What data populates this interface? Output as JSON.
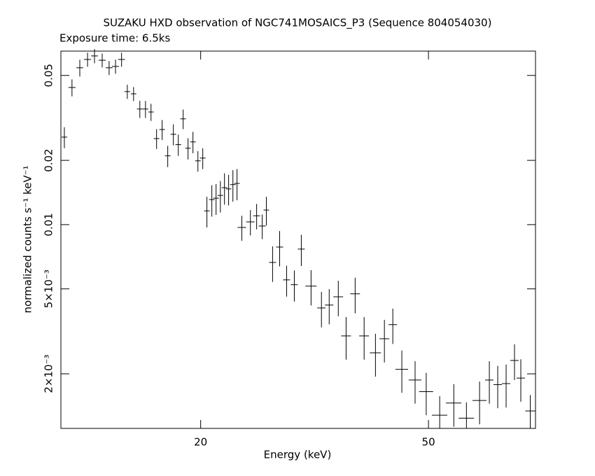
{
  "chart_data": {
    "type": "scatter",
    "title": "SUZAKU HXD observation of NGC741MOSAICS_P3 (Sequence 804054030)",
    "subtitle": "Exposure time: 6.5ks",
    "x_label": "Energy (keV)",
    "y_label": "normalized counts s⁻¹ keV⁻¹",
    "xlog": true,
    "ylog": true,
    "color": "#000000",
    "xlim": [
      11.4,
      76.9
    ],
    "ylim": [
      0.00111,
      0.065
    ],
    "xticks": [
      20,
      50
    ],
    "yticks": [
      0.05,
      0.02,
      0.01,
      {
        "value": 0.005,
        "label": "5×10⁻³"
      },
      {
        "value": 0.002,
        "label": "2×10⁻³"
      }
    ],
    "x": [
      11.56,
      11.92,
      12.3,
      12.69,
      13.05,
      13.46,
      13.84,
      14.2,
      14.55,
      14.89,
      15.27,
      15.66,
      16.02,
      16.38,
      16.75,
      17.13,
      17.52,
      17.92,
      18.28,
      18.64,
      19.01,
      19.39,
      19.78,
      20.17,
      20.51,
      20.92,
      21.28,
      21.65,
      22.01,
      22.38,
      22.77,
      23.15,
      23.6,
      24.43,
      25.05,
      25.62,
      26.05,
      26.71,
      27.48,
      28.26,
      29.15,
      29.98,
      31.18,
      32.51,
      33.54,
      34.79,
      35.9,
      37.23,
      38.6,
      40.4,
      41.88,
      43.32,
      44.92,
      47.38,
      49.55,
      52.31,
      55.36,
      58.25,
      61.41,
      63.87,
      66.06,
      68.33,
      70.67,
      72.49,
      75.3
    ],
    "xerr": [
      0.13,
      0.17,
      0.17,
      0.18,
      0.18,
      0.19,
      0.19,
      0.2,
      0.2,
      0.17,
      0.17,
      0.18,
      0.18,
      0.18,
      0.19,
      0.19,
      0.2,
      0.2,
      0.21,
      0.21,
      0.21,
      0.22,
      0.22,
      0.23,
      0.23,
      0.24,
      0.24,
      0.24,
      0.25,
      0.25,
      0.26,
      0.26,
      0.4,
      0.41,
      0.35,
      0.36,
      0.29,
      0.38,
      0.39,
      0.4,
      0.41,
      0.42,
      0.7,
      0.55,
      0.57,
      0.68,
      0.71,
      0.73,
      0.76,
      0.91,
      0.82,
      0.73,
      1.14,
      1.2,
      1.39,
      1.62,
      1.71,
      1.8,
      1.73,
      1.08,
      1.11,
      1.15,
      1.19,
      1.22,
      1.48
    ],
    "values": [
      0.0257,
      0.0439,
      0.0543,
      0.0594,
      0.0617,
      0.0589,
      0.0543,
      0.0551,
      0.0594,
      0.042,
      0.041,
      0.0348,
      0.0348,
      0.0337,
      0.0253,
      0.0279,
      0.021,
      0.0265,
      0.0237,
      0.0313,
      0.0228,
      0.0244,
      0.0199,
      0.0205,
      0.0116,
      0.0131,
      0.0133,
      0.0137,
      0.0149,
      0.0147,
      0.0154,
      0.0156,
      0.0097,
      0.0103,
      0.011,
      0.00985,
      0.0117,
      0.00665,
      0.00785,
      0.00551,
      0.00523,
      0.00768,
      0.00515,
      0.00407,
      0.0042,
      0.00459,
      0.00301,
      0.00474,
      0.00301,
      0.00251,
      0.00292,
      0.0034,
      0.0021,
      0.00187,
      0.00165,
      0.00128,
      0.00146,
      0.00124,
      0.0015,
      0.00187,
      0.00178,
      0.0018,
      0.00231,
      0.00191,
      0.00134
    ],
    "yerr": [
      0.0029,
      0.004,
      0.0049,
      0.0045,
      0.0047,
      0.0044,
      0.0041,
      0.0042,
      0.0045,
      0.0032,
      0.0031,
      0.0032,
      0.0032,
      0.0031,
      0.0027,
      0.003,
      0.0024,
      0.003,
      0.0027,
      0.0033,
      0.0026,
      0.0028,
      0.0022,
      0.0023,
      0.0019,
      0.0022,
      0.0022,
      0.0023,
      0.0025,
      0.0024,
      0.0026,
      0.0026,
      0.0013,
      0.0014,
      0.0015,
      0.0013,
      0.0018,
      0.00126,
      0.00148,
      0.00091,
      0.00087,
      0.00128,
      0.00097,
      0.00077,
      0.00079,
      0.00087,
      0.00068,
      0.0009,
      0.00068,
      0.00057,
      0.00066,
      0.00064,
      0.00047,
      0.00042,
      0.00037,
      0.00029,
      0.00033,
      0.00023,
      0.00034,
      0.00042,
      0.0004,
      0.00041,
      0.00044,
      0.00043,
      0.00025
    ]
  }
}
